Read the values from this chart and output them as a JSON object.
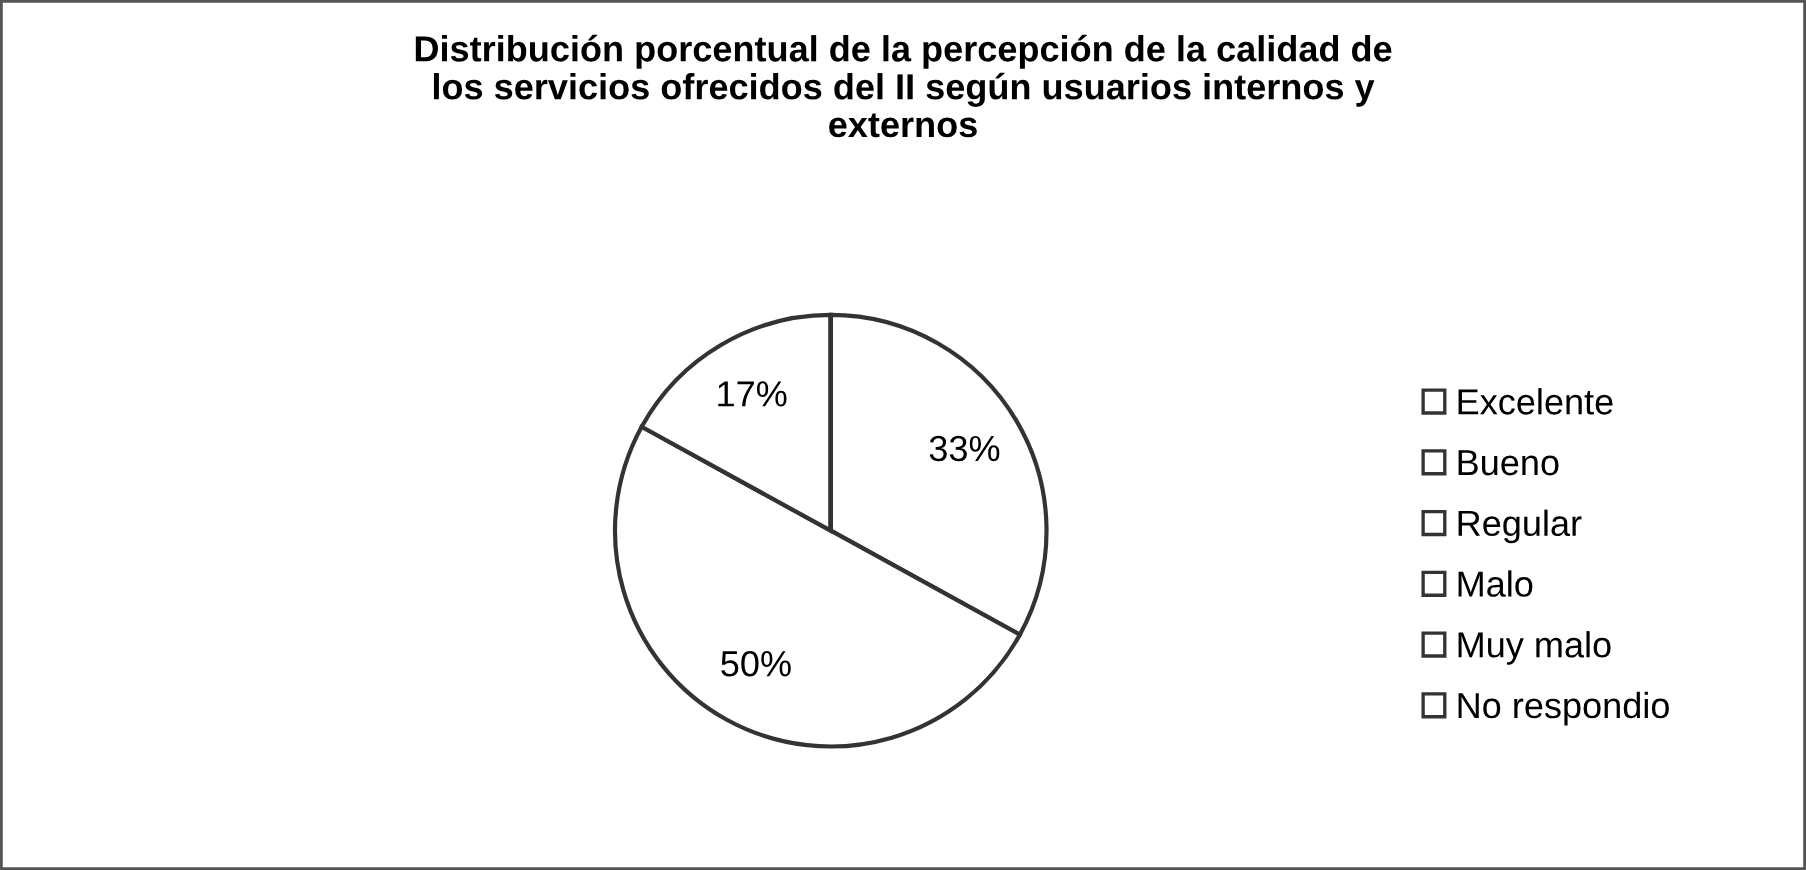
{
  "chart_data": {
    "type": "pie",
    "title": "Distribución porcentual de la percepción de la calidad de\nlos servicios ofrecidos del II según usuarios internos y\nexternos",
    "categories": [
      "Excelente",
      "Bueno",
      "Regular",
      "Malo",
      "Muy malo",
      "No respondio"
    ],
    "values": [
      33,
      50,
      17,
      0,
      0,
      0
    ],
    "value_labels": [
      "33%",
      "50%",
      "17%",
      null,
      null,
      null
    ],
    "colors": [
      "#ffffff",
      "#ffffff",
      "#ffffff",
      "#ffffff",
      "#ffffff",
      "#ffffff"
    ],
    "legend": "right"
  }
}
